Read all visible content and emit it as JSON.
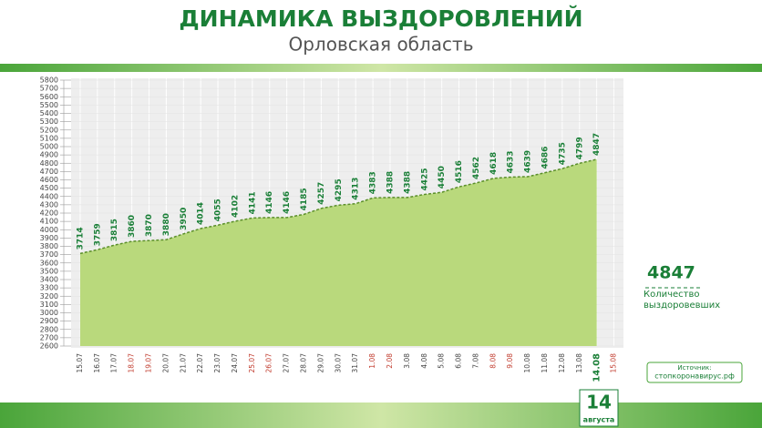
{
  "chart_data": {
    "type": "area",
    "title": "ДИНАМИКА ВЫЗДОРОВЛЕНИЙ",
    "subtitle": "Орловская область",
    "categories": [
      "15.07",
      "16.07",
      "17.07",
      "18.07",
      "19.07",
      "20.07",
      "21.07",
      "22.07",
      "23.07",
      "24.07",
      "25.07",
      "26.07",
      "27.07",
      "28.07",
      "29.07",
      "30.07",
      "31.07",
      "1.08",
      "2.08",
      "3.08",
      "4.08",
      "5.08",
      "6.08",
      "7.08",
      "8.08",
      "9.08",
      "10.08",
      "11.08",
      "12.08",
      "13.08",
      "14.08",
      "15.08"
    ],
    "category_colors": [
      "#444",
      "#444",
      "#444",
      "#c0392b",
      "#c0392b",
      "#444",
      "#444",
      "#444",
      "#444",
      "#444",
      "#c0392b",
      "#c0392b",
      "#444",
      "#444",
      "#444",
      "#444",
      "#444",
      "#c0392b",
      "#c0392b",
      "#444",
      "#444",
      "#444",
      "#444",
      "#444",
      "#c0392b",
      "#c0392b",
      "#444",
      "#444",
      "#444",
      "#444",
      "#1a7f37",
      "#c0392b"
    ],
    "values": [
      3714,
      3759,
      3815,
      3860,
      3870,
      3880,
      3950,
      4014,
      4055,
      4102,
      4141,
      4146,
      4146,
      4185,
      4257,
      4295,
      4313,
      4383,
      4388,
      4388,
      4425,
      4450,
      4516,
      4562,
      4618,
      4633,
      4639,
      4686,
      4735,
      4799,
      4847,
      null
    ],
    "color": "#b9d97c",
    "line_color": "#5b8f2a",
    "label_color": "#1a7f37",
    "ylim": [
      2600,
      5800
    ],
    "yticks": [
      2600,
      2700,
      2800,
      2900,
      3000,
      3100,
      3200,
      3300,
      3400,
      3500,
      3600,
      3700,
      3800,
      3900,
      4000,
      4100,
      4200,
      4300,
      4400,
      4500,
      4600,
      4700,
      4800,
      4900,
      5000,
      5100,
      5200,
      5300,
      5400,
      5500,
      5600,
      5700,
      5800
    ],
    "grid": true,
    "highlight": {
      "value": 4847,
      "label": "Количество выздоровевших"
    },
    "date_badge": {
      "day": "14",
      "month": "августа"
    },
    "source_label": "Источник:",
    "source": "стопкоронавирус.рф"
  }
}
